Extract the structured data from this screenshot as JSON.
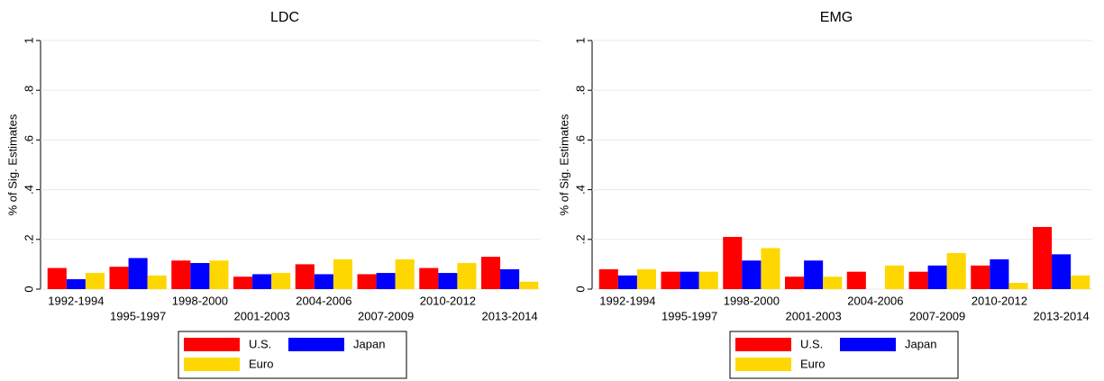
{
  "chart_data": [
    {
      "type": "bar",
      "title": "LDC",
      "y_label": "% of Sig. Estimates",
      "categories": [
        "1992-1994",
        "1995-1997",
        "1998-2000",
        "2001-2003",
        "2004-2006",
        "2007-2009",
        "2010-2012",
        "2013-2014"
      ],
      "series": [
        {
          "name": "U.S.",
          "color": "#ff0000",
          "values": [
            0.085,
            0.09,
            0.115,
            0.05,
            0.1,
            0.06,
            0.085,
            0.13
          ]
        },
        {
          "name": "Japan",
          "color": "#0000ff",
          "values": [
            0.04,
            0.125,
            0.105,
            0.06,
            0.06,
            0.065,
            0.065,
            0.08
          ]
        },
        {
          "name": "Euro",
          "color": "#ffd700",
          "values": [
            0.065,
            0.055,
            0.115,
            0.065,
            0.12,
            0.12,
            0.105,
            0.03
          ]
        }
      ],
      "ylim": [
        0,
        1
      ],
      "yticks": [
        0,
        {
          "value": 0.2,
          "label": ".2"
        },
        {
          "value": 0.4,
          "label": ".4"
        },
        {
          "value": 0.6,
          "label": ".6"
        },
        {
          "value": 0.8,
          "label": ".8"
        },
        1
      ],
      "grid": true
    },
    {
      "type": "bar",
      "title": "EMG",
      "y_label": "% of Sig. Estimates",
      "categories": [
        "1992-1994",
        "1995-1997",
        "1998-2000",
        "2001-2003",
        "2004-2006",
        "2007-2009",
        "2010-2012",
        "2013-2014"
      ],
      "series": [
        {
          "name": "U.S.",
          "color": "#ff0000",
          "values": [
            0.08,
            0.07,
            0.21,
            0.05,
            0.07,
            0.07,
            0.095,
            0.25
          ]
        },
        {
          "name": "Japan",
          "color": "#0000ff",
          "values": [
            0.055,
            0.07,
            0.115,
            0.115,
            0,
            0.095,
            0.12,
            0.14
          ]
        },
        {
          "name": "Euro",
          "color": "#ffd700",
          "values": [
            0.08,
            0.07,
            0.165,
            0.05,
            0.095,
            0.145,
            0.025,
            0.055
          ]
        }
      ],
      "ylim": [
        0,
        1
      ],
      "yticks": [
        0,
        {
          "value": 0.2,
          "label": ".2"
        },
        {
          "value": 0.4,
          "label": ".4"
        },
        {
          "value": 0.6,
          "label": ".6"
        },
        {
          "value": 0.8,
          "label": ".8"
        },
        1
      ],
      "grid": true
    }
  ]
}
